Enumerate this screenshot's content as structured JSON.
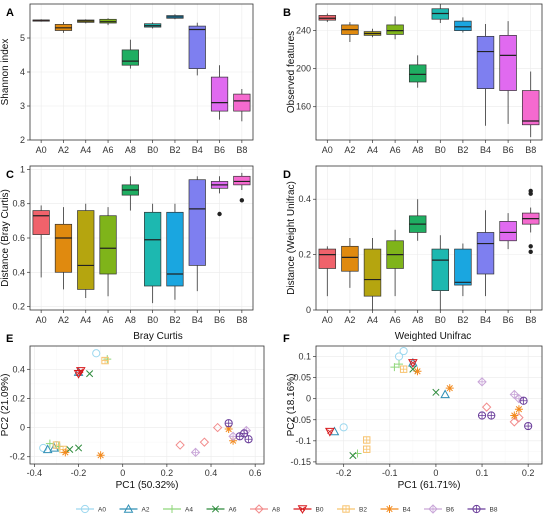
{
  "colors": {
    "A0": "#9DD8EF",
    "A2": "#2F8FB5",
    "A4": "#8FD67A",
    "A6": "#2E8B3C",
    "A8": "#F28C8C",
    "B0": "#D7191C",
    "B2": "#F7C36E",
    "B4": "#F28A1E",
    "B6": "#C9A6D8",
    "B8": "#6A3D9A"
  },
  "box_fill": {
    "A0": "#F0626B",
    "A2": "#E08A0F",
    "A4": "#B5A50F",
    "A6": "#7FB41A",
    "A8": "#1FAE62",
    "B0": "#1DB8B0",
    "B2": "#1AA6E0",
    "B4": "#7E7FF0",
    "B6": "#E06AF0",
    "B8": "#F56ACF"
  },
  "legend": {
    "items": [
      "A0",
      "A2",
      "A4",
      "A6",
      "A8",
      "B0",
      "B2",
      "B4",
      "B6",
      "B8"
    ]
  },
  "chart_data": [
    {
      "panel": "A",
      "type": "box",
      "xlabel": "",
      "ylabel": "Shannon index",
      "categories": [
        "A0",
        "A2",
        "A4",
        "A6",
        "A8",
        "B0",
        "B2",
        "B4",
        "B6",
        "B8"
      ],
      "ylim": [
        2,
        6
      ],
      "yticks": [
        2,
        3,
        4,
        5
      ],
      "boxes": [
        {
          "min": 5.48,
          "q1": 5.5,
          "median": 5.52,
          "q3": 5.53,
          "max": 5.55,
          "outliers": []
        },
        {
          "min": 5.15,
          "q1": 5.22,
          "median": 5.3,
          "q3": 5.4,
          "max": 5.47,
          "outliers": []
        },
        {
          "min": 5.43,
          "q1": 5.46,
          "median": 5.5,
          "q3": 5.53,
          "max": 5.55,
          "outliers": []
        },
        {
          "min": 5.38,
          "q1": 5.44,
          "median": 5.48,
          "q3": 5.55,
          "max": 5.58,
          "outliers": []
        },
        {
          "min": 4.1,
          "q1": 4.2,
          "median": 4.32,
          "q3": 4.65,
          "max": 4.95,
          "outliers": []
        },
        {
          "min": 5.28,
          "q1": 5.32,
          "median": 5.36,
          "q3": 5.42,
          "max": 5.46,
          "outliers": []
        },
        {
          "min": 5.55,
          "q1": 5.58,
          "median": 5.62,
          "q3": 5.66,
          "max": 5.7,
          "outliers": []
        },
        {
          "min": 3.9,
          "q1": 4.1,
          "median": 5.25,
          "q3": 5.35,
          "max": 5.45,
          "outliers": []
        },
        {
          "min": 2.6,
          "q1": 2.85,
          "median": 3.1,
          "q3": 3.85,
          "max": 4.2,
          "outliers": []
        },
        {
          "min": 2.55,
          "q1": 2.85,
          "median": 3.15,
          "q3": 3.35,
          "max": 3.5,
          "outliers": []
        }
      ]
    },
    {
      "panel": "B",
      "type": "box",
      "xlabel": "",
      "ylabel": "Observed features",
      "categories": [
        "A0",
        "A2",
        "A4",
        "A6",
        "A8",
        "B0",
        "B2",
        "B4",
        "B6",
        "B8"
      ],
      "ylim": [
        125,
        268
      ],
      "yticks": [
        160,
        200,
        240
      ],
      "boxes": [
        {
          "min": 249,
          "q1": 251,
          "median": 253,
          "q3": 256,
          "max": 258,
          "outliers": []
        },
        {
          "min": 228,
          "q1": 236,
          "median": 241,
          "q3": 246,
          "max": 249,
          "outliers": []
        },
        {
          "min": 233,
          "q1": 235,
          "median": 237,
          "q3": 239,
          "max": 242,
          "outliers": []
        },
        {
          "min": 231,
          "q1": 236,
          "median": 240,
          "q3": 246,
          "max": 255,
          "outliers": []
        },
        {
          "min": 180,
          "q1": 186,
          "median": 194,
          "q3": 204,
          "max": 214,
          "outliers": []
        },
        {
          "min": 248,
          "q1": 252,
          "median": 258,
          "q3": 263,
          "max": 268,
          "outliers": []
        },
        {
          "min": 238,
          "q1": 240,
          "median": 244,
          "q3": 250,
          "max": 254,
          "outliers": []
        },
        {
          "min": 140,
          "q1": 179,
          "median": 218,
          "q3": 234,
          "max": 247,
          "outliers": []
        },
        {
          "min": 142,
          "q1": 177,
          "median": 214,
          "q3": 235,
          "max": 250,
          "outliers": []
        },
        {
          "min": 128,
          "q1": 141,
          "median": 145,
          "q3": 177,
          "max": 197,
          "outliers": []
        }
      ]
    },
    {
      "panel": "C",
      "type": "box",
      "xlabel": "",
      "ylabel": "Distance (Bray Curtis)",
      "categories": [
        "A0",
        "A2",
        "A4",
        "A6",
        "A8",
        "B0",
        "B2",
        "B4",
        "B6",
        "B8"
      ],
      "ylim": [
        0.18,
        1.02
      ],
      "yticks": [
        0.2,
        0.4,
        0.6,
        0.8,
        1.0
      ],
      "boxes": [
        {
          "min": 0.37,
          "q1": 0.62,
          "median": 0.73,
          "q3": 0.76,
          "max": 0.79,
          "outliers": []
        },
        {
          "min": 0.3,
          "q1": 0.4,
          "median": 0.6,
          "q3": 0.68,
          "max": 0.78,
          "outliers": []
        },
        {
          "min": 0.25,
          "q1": 0.3,
          "median": 0.44,
          "q3": 0.76,
          "max": 0.8,
          "outliers": []
        },
        {
          "min": 0.26,
          "q1": 0.39,
          "median": 0.54,
          "q3": 0.73,
          "max": 0.78,
          "outliers": []
        },
        {
          "min": 0.76,
          "q1": 0.85,
          "median": 0.88,
          "q3": 0.91,
          "max": 0.96,
          "outliers": []
        },
        {
          "min": 0.22,
          "q1": 0.32,
          "median": 0.59,
          "q3": 0.75,
          "max": 0.8,
          "outliers": []
        },
        {
          "min": 0.24,
          "q1": 0.32,
          "median": 0.39,
          "q3": 0.75,
          "max": 0.8,
          "outliers": []
        },
        {
          "min": 0.29,
          "q1": 0.44,
          "median": 0.77,
          "q3": 0.94,
          "max": 0.96,
          "outliers": []
        },
        {
          "min": 0.86,
          "q1": 0.89,
          "median": 0.91,
          "q3": 0.93,
          "max": 0.96,
          "outliers": [
            0.74
          ]
        },
        {
          "min": 0.88,
          "q1": 0.91,
          "median": 0.93,
          "q3": 0.96,
          "max": 0.98,
          "outliers": [
            0.82
          ]
        }
      ]
    },
    {
      "panel": "D",
      "type": "box",
      "xlabel": "",
      "ylabel": "Distance (Weight Unifrac)",
      "categories": [
        "A0",
        "A2",
        "A4",
        "A6",
        "A8",
        "B0",
        "B2",
        "B4",
        "B6",
        "B8"
      ],
      "ylim": [
        0,
        0.52
      ],
      "yticks": [
        0.0,
        0.2,
        0.4
      ],
      "boxes": [
        {
          "min": 0.05,
          "q1": 0.15,
          "median": 0.2,
          "q3": 0.22,
          "max": 0.23,
          "outliers": []
        },
        {
          "min": 0.08,
          "q1": 0.14,
          "median": 0.19,
          "q3": 0.23,
          "max": 0.26,
          "outliers": []
        },
        {
          "min": 0.0,
          "q1": 0.05,
          "median": 0.11,
          "q3": 0.22,
          "max": 0.26,
          "outliers": []
        },
        {
          "min": 0.05,
          "q1": 0.15,
          "median": 0.2,
          "q3": 0.25,
          "max": 0.29,
          "outliers": []
        },
        {
          "min": 0.25,
          "q1": 0.28,
          "median": 0.31,
          "q3": 0.34,
          "max": 0.4,
          "outliers": []
        },
        {
          "min": 0.0,
          "q1": 0.07,
          "median": 0.18,
          "q3": 0.22,
          "max": 0.27,
          "outliers": []
        },
        {
          "min": 0.05,
          "q1": 0.09,
          "median": 0.1,
          "q3": 0.22,
          "max": 0.24,
          "outliers": []
        },
        {
          "min": 0.05,
          "q1": 0.13,
          "median": 0.24,
          "q3": 0.28,
          "max": 0.36,
          "outliers": []
        },
        {
          "min": 0.22,
          "q1": 0.25,
          "median": 0.28,
          "q3": 0.32,
          "max": 0.35,
          "outliers": []
        },
        {
          "min": 0.28,
          "q1": 0.31,
          "median": 0.33,
          "q3": 0.35,
          "max": 0.37,
          "outliers": [
            0.43,
            0.42,
            0.23,
            0.21
          ]
        }
      ]
    },
    {
      "panel": "E",
      "type": "scatter",
      "title": "Bray Curtis",
      "xlabel": "PC1 (50.32%)",
      "ylabel": "PC2 (21.09%)",
      "xlim": [
        -0.42,
        0.64
      ],
      "ylim": [
        -0.25,
        0.56
      ],
      "xticks": [
        -0.4,
        -0.2,
        0.0,
        0.2,
        0.4,
        0.6
      ],
      "yticks": [
        -0.2,
        0.0,
        0.2,
        0.4
      ],
      "points": [
        {
          "g": "A0",
          "x": -0.12,
          "y": 0.51
        },
        {
          "g": "A0",
          "x": -0.36,
          "y": -0.14
        },
        {
          "g": "A0",
          "x": -0.3,
          "y": -0.12
        },
        {
          "g": "A2",
          "x": -0.34,
          "y": -0.15
        },
        {
          "g": "A2",
          "x": -0.2,
          "y": 0.38
        },
        {
          "g": "A2",
          "x": -0.31,
          "y": -0.14
        },
        {
          "g": "A4",
          "x": -0.07,
          "y": 0.47
        },
        {
          "g": "A4",
          "x": -0.33,
          "y": -0.11
        },
        {
          "g": "A4",
          "x": -0.29,
          "y": -0.13
        },
        {
          "g": "A6",
          "x": -0.15,
          "y": 0.37
        },
        {
          "g": "A6",
          "x": -0.2,
          "y": -0.14
        },
        {
          "g": "A6",
          "x": -0.24,
          "y": -0.15
        },
        {
          "g": "A8",
          "x": 0.26,
          "y": -0.12
        },
        {
          "g": "A8",
          "x": 0.37,
          "y": -0.1
        },
        {
          "g": "A8",
          "x": 0.43,
          "y": 0.0
        },
        {
          "g": "B0",
          "x": -0.2,
          "y": 0.37
        },
        {
          "g": "B0",
          "x": -0.19,
          "y": 0.39
        },
        {
          "g": "B2",
          "x": -0.08,
          "y": 0.46
        },
        {
          "g": "B2",
          "x": -0.27,
          "y": -0.15
        },
        {
          "g": "B2",
          "x": -0.3,
          "y": -0.12
        },
        {
          "g": "B4",
          "x": -0.1,
          "y": -0.19
        },
        {
          "g": "B4",
          "x": -0.26,
          "y": -0.17
        },
        {
          "g": "B4",
          "x": 0.5,
          "y": -0.09
        },
        {
          "g": "B4",
          "x": 0.48,
          "y": -0.01
        },
        {
          "g": "B6",
          "x": 0.33,
          "y": -0.17
        },
        {
          "g": "B6",
          "x": 0.56,
          "y": -0.02
        },
        {
          "g": "B6",
          "x": 0.5,
          "y": -0.06
        },
        {
          "g": "B8",
          "x": 0.48,
          "y": 0.03
        },
        {
          "g": "B8",
          "x": 0.53,
          "y": -0.06
        },
        {
          "g": "B8",
          "x": 0.57,
          "y": -0.08
        },
        {
          "g": "B8",
          "x": 0.55,
          "y": -0.04
        }
      ]
    },
    {
      "panel": "F",
      "type": "scatter",
      "title": "Weighted Unifrac",
      "xlabel": "PC1 (61.71%)",
      "ylabel": "PC2 (18.16%)",
      "xlim": [
        -0.26,
        0.23
      ],
      "ylim": [
        -0.155,
        0.125
      ],
      "xticks": [
        -0.2,
        -0.1,
        0.0,
        0.1,
        0.2
      ],
      "yticks": [
        -0.15,
        -0.1,
        -0.05,
        0.0,
        0.05,
        0.1
      ],
      "points": [
        {
          "g": "A0",
          "x": -0.07,
          "y": 0.113
        },
        {
          "g": "A0",
          "x": -0.2,
          "y": -0.068
        },
        {
          "g": "A0",
          "x": -0.08,
          "y": 0.1
        },
        {
          "g": "A2",
          "x": -0.05,
          "y": 0.085
        },
        {
          "g": "A2",
          "x": -0.22,
          "y": -0.078
        },
        {
          "g": "A2",
          "x": 0.02,
          "y": 0.01
        },
        {
          "g": "A4",
          "x": -0.09,
          "y": 0.075
        },
        {
          "g": "A4",
          "x": -0.08,
          "y": 0.082
        },
        {
          "g": "A4",
          "x": -0.17,
          "y": -0.13
        },
        {
          "g": "A6",
          "x": -0.05,
          "y": 0.07
        },
        {
          "g": "A6",
          "x": 0.0,
          "y": 0.015
        },
        {
          "g": "A6",
          "x": -0.18,
          "y": -0.135
        },
        {
          "g": "A8",
          "x": 0.11,
          "y": -0.02
        },
        {
          "g": "A8",
          "x": 0.17,
          "y": -0.055
        },
        {
          "g": "A8",
          "x": 0.18,
          "y": -0.045
        },
        {
          "g": "B0",
          "x": -0.23,
          "y": -0.078
        },
        {
          "g": "B0",
          "x": -0.05,
          "y": 0.085
        },
        {
          "g": "B2",
          "x": -0.15,
          "y": -0.098
        },
        {
          "g": "B2",
          "x": -0.15,
          "y": -0.12
        },
        {
          "g": "B2",
          "x": -0.07,
          "y": 0.07
        },
        {
          "g": "B4",
          "x": -0.04,
          "y": 0.065
        },
        {
          "g": "B4",
          "x": 0.03,
          "y": 0.025
        },
        {
          "g": "B4",
          "x": 0.18,
          "y": -0.025
        },
        {
          "g": "B4",
          "x": 0.17,
          "y": -0.04
        },
        {
          "g": "B6",
          "x": 0.1,
          "y": 0.04
        },
        {
          "g": "B6",
          "x": 0.17,
          "y": 0.01
        },
        {
          "g": "B6",
          "x": 0.18,
          "y": 0.0
        },
        {
          "g": "B8",
          "x": 0.12,
          "y": -0.04
        },
        {
          "g": "B8",
          "x": 0.1,
          "y": -0.04
        },
        {
          "g": "B8",
          "x": 0.2,
          "y": -0.065
        },
        {
          "g": "B8",
          "x": 0.19,
          "y": -0.005
        }
      ]
    }
  ]
}
